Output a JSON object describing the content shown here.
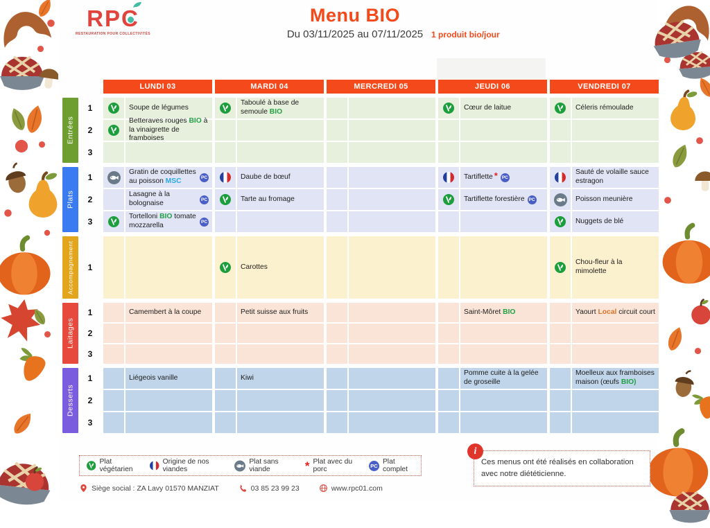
{
  "header": {
    "logo": {
      "text": "RPC",
      "tagline": "RESTAURATION POUR COLLECTIVITÉS"
    },
    "title": "Menu BIO",
    "date_range": "Du 03/11/2025 au 07/11/2025",
    "bio_note": "1 produit bio/jour"
  },
  "days": [
    "LUNDI 03",
    "MARDI 04",
    "MERCREDI 05",
    "JEUDI 06",
    "VENDREDI 07"
  ],
  "badges": {
    "pc": "PC"
  },
  "colors": {
    "accent_orange": "#F3491B",
    "bio_green": "#21A044",
    "msc_blue": "#2BAAE2",
    "local_orange": "#E0742B",
    "pc_badge_blue": "#4A5EC8",
    "veg_green": "#1D9E3D",
    "fish_gray": "#6B7A89",
    "porc_red": "#E32222"
  },
  "sections": [
    {
      "id": "entrees",
      "label": "Entrées",
      "label_color": "#6E9E2F",
      "cell_color": "#E7F0DD",
      "rows": [
        {
          "num": "1",
          "cells": [
            {
              "icon": "veg",
              "text": [
                {
                  "t": "Soupe de légumes"
                }
              ]
            },
            {
              "icon": "veg",
              "text": [
                {
                  "t": "Taboulé à base de semoule "
                },
                {
                  "t": "BIO",
                  "c": "bio"
                }
              ]
            },
            {},
            {
              "icon": "veg",
              "text": [
                {
                  "t": "Cœur de laitue"
                }
              ]
            },
            {
              "icon": "veg",
              "text": [
                {
                  "t": "Céleris rémoulade"
                }
              ]
            }
          ]
        },
        {
          "num": "2",
          "cells": [
            {
              "icon": "veg",
              "text": [
                {
                  "t": "Betteraves rouges "
                },
                {
                  "t": "BIO",
                  "c": "bio"
                },
                {
                  "t": " à la vinaigrette de framboises"
                }
              ]
            },
            {},
            {},
            {},
            {}
          ]
        },
        {
          "num": "3",
          "cells": [
            {},
            {},
            {},
            {},
            {}
          ]
        }
      ]
    },
    {
      "id": "plats",
      "label": "Plats",
      "label_color": "#3B7BF2",
      "cell_color": "#E0E4F4",
      "rows": [
        {
          "num": "1",
          "cells": [
            {
              "icon": "fish",
              "text": [
                {
                  "t": "Gratin de coquillettes au poisson "
                },
                {
                  "t": "MSC",
                  "c": "msc"
                }
              ],
              "badge": "PC"
            },
            {
              "icon": "flag",
              "text": [
                {
                  "t": "Daube de bœuf"
                }
              ]
            },
            {},
            {
              "icon": "flag",
              "text": [
                {
                  "t": "Tartiflette"
                }
              ],
              "star": true,
              "badge": "PC"
            },
            {
              "icon": "flag",
              "text": [
                {
                  "t": "Sauté de volaille sauce estragon"
                }
              ]
            }
          ]
        },
        {
          "num": "2",
          "cells": [
            {
              "text": [
                {
                  "t": "Lasagne à la bolognaise"
                }
              ],
              "badge": "PC"
            },
            {
              "icon": "veg",
              "text": [
                {
                  "t": "Tarte au fromage"
                }
              ]
            },
            {},
            {
              "icon": "veg",
              "text": [
                {
                  "t": "Tartiflette forestière"
                }
              ],
              "badge": "PC"
            },
            {
              "icon": "fish",
              "text": [
                {
                  "t": "Poisson meunière"
                }
              ]
            }
          ]
        },
        {
          "num": "3",
          "cells": [
            {
              "icon": "veg",
              "text": [
                {
                  "t": "Tortelloni "
                },
                {
                  "t": "BIO",
                  "c": "bio"
                },
                {
                  "t": " tomate mozzarella"
                }
              ],
              "badge": "PC"
            },
            {},
            {},
            {},
            {
              "icon": "veg",
              "text": [
                {
                  "t": "Nuggets de blé"
                }
              ]
            }
          ]
        }
      ]
    },
    {
      "id": "accompagnement",
      "label": "Accompagnement",
      "label_color": "#E3A51B",
      "cell_color": "#FCF1CE",
      "rows": [
        {
          "num": "1",
          "cells": [
            {},
            {
              "icon": "veg",
              "text": [
                {
                  "t": "Carottes"
                }
              ]
            },
            {},
            {},
            {
              "icon": "veg",
              "text": [
                {
                  "t": "Chou-fleur à la mimolette"
                }
              ]
            }
          ]
        }
      ]
    },
    {
      "id": "laitages",
      "label": "Laitages",
      "label_color": "#E74A3C",
      "cell_color": "#FAE4D7",
      "rows": [
        {
          "num": "1",
          "cells": [
            {
              "text": [
                {
                  "t": "Camembert à la coupe"
                }
              ]
            },
            {
              "text": [
                {
                  "t": "Petit suisse aux fruits"
                }
              ]
            },
            {},
            {
              "text": [
                {
                  "t": "Saint-Môret "
                },
                {
                  "t": "BIO",
                  "c": "bio"
                }
              ]
            },
            {
              "text": [
                {
                  "t": "Yaourt "
                },
                {
                  "t": "Local",
                  "c": "local"
                },
                {
                  "t": " circuit court"
                }
              ]
            }
          ]
        },
        {
          "num": "2",
          "cells": [
            {},
            {},
            {},
            {},
            {}
          ]
        },
        {
          "num": "3",
          "cells": [
            {},
            {},
            {},
            {},
            {}
          ]
        }
      ]
    },
    {
      "id": "desserts",
      "label": "Desserts",
      "label_color": "#7A5CDE",
      "cell_color": "#C0D5EA",
      "rows": [
        {
          "num": "1",
          "cells": [
            {
              "text": [
                {
                  "t": "Liégeois vanille"
                }
              ]
            },
            {
              "text": [
                {
                  "t": "Kiwi"
                }
              ]
            },
            {},
            {
              "text": [
                {
                  "t": "Pomme cuite à la gelée de groseille"
                }
              ]
            },
            {
              "text": [
                {
                  "t": "Moelleux aux framboises maison (œufs "
                },
                {
                  "t": "BIO)",
                  "c": "bio"
                }
              ]
            }
          ]
        },
        {
          "num": "2",
          "cells": [
            {},
            {},
            {},
            {},
            {}
          ]
        },
        {
          "num": "3",
          "cells": [
            {},
            {},
            {},
            {},
            {}
          ]
        }
      ]
    }
  ],
  "legend": [
    {
      "icon": "veg",
      "label": "Plat végétarien"
    },
    {
      "icon": "flag",
      "label": "Origine de nos viandes"
    },
    {
      "icon": "fish",
      "label": "Plat sans viande"
    },
    {
      "icon": "star",
      "label": "Plat avec du porc"
    },
    {
      "icon": "pc",
      "label": "Plat complet"
    }
  ],
  "info_note": "Ces menus ont été réalisés en collaboration avec notre diététicienne.",
  "footer": {
    "items": [
      {
        "icon": "pin",
        "text": "Siège social : ZA Lavy 01570 MANZIAT"
      },
      {
        "icon": "phone",
        "text": "03 85 23 99 23"
      },
      {
        "icon": "globe",
        "text": "www.rpc01.com"
      }
    ]
  },
  "decorations": [
    "croissant",
    "pie",
    "mushroom",
    "autumn-leaf",
    "olive-leaf",
    "berry",
    "pear",
    "pumpkin",
    "acorn",
    "carrot",
    "apple",
    "maple-leaf"
  ]
}
